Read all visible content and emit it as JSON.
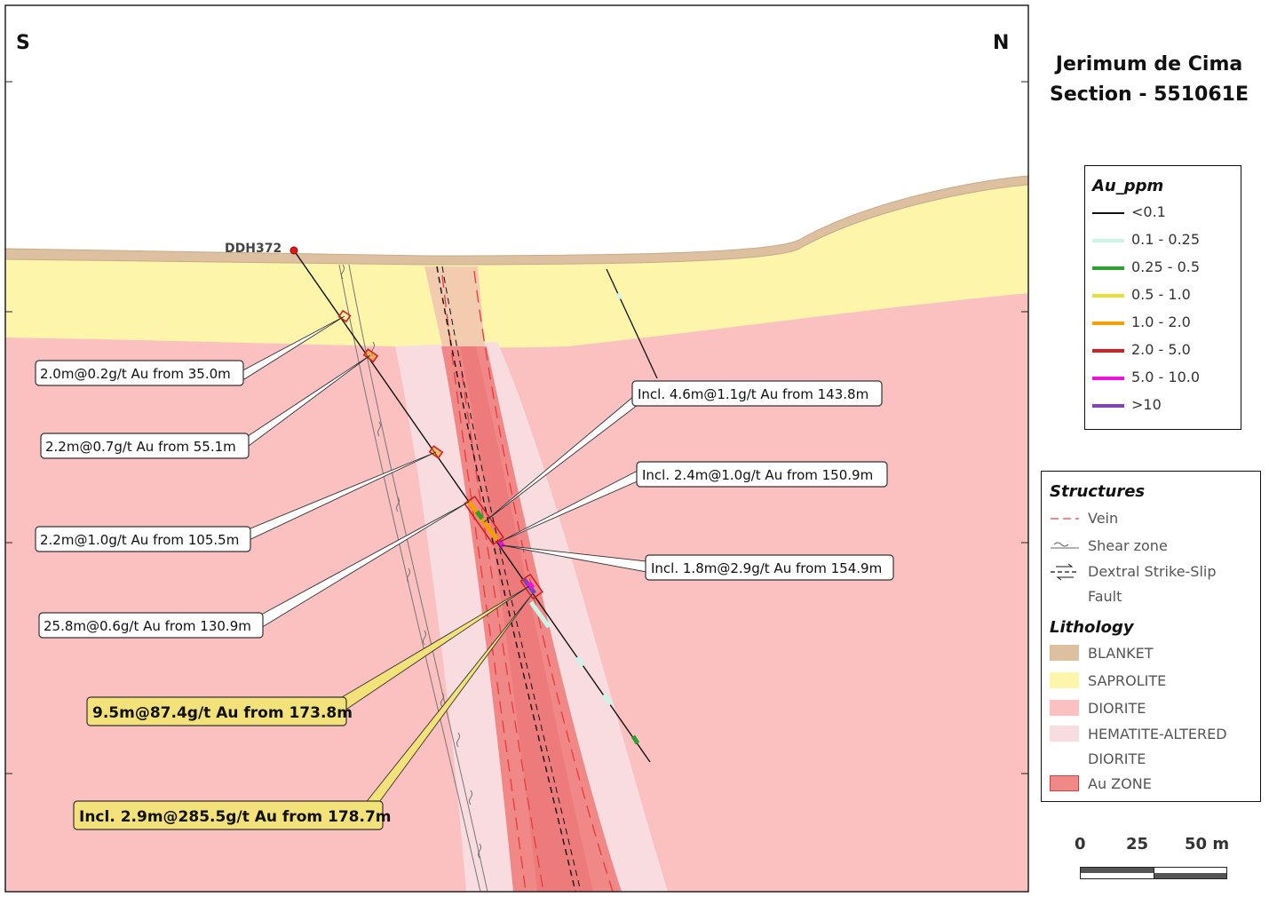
{
  "title": {
    "line1": "Jerimum de Cima",
    "line2": "Section - 551061E"
  },
  "compass": {
    "left": "S",
    "right": "N"
  },
  "drillhole": {
    "name": "DDH372"
  },
  "callouts": [
    {
      "id": "c1",
      "text": "2.0m@0.2g/t Au from 35.0m",
      "highlight": false
    },
    {
      "id": "c2",
      "text": "2.2m@0.7g/t Au from 55.1m",
      "highlight": false
    },
    {
      "id": "c3",
      "text": "2.2m@1.0g/t Au from 105.5m",
      "highlight": false
    },
    {
      "id": "c4",
      "text": "25.8m@0.6g/t Au from 130.9m",
      "highlight": false
    },
    {
      "id": "c5",
      "text": "9.5m@87.4g/t Au from 173.8m",
      "highlight": true
    },
    {
      "id": "c6",
      "text": "Incl. 2.9m@285.5g/t Au from 178.7m",
      "highlight": true
    },
    {
      "id": "c7",
      "text": "Incl. 4.6m@1.1g/t Au from 143.8m",
      "highlight": false
    },
    {
      "id": "c8",
      "text": "Incl. 2.4m@1.0g/t Au from 150.9m",
      "highlight": false
    },
    {
      "id": "c9",
      "text": "Incl. 1.8m@2.9g/t Au from 154.9m",
      "highlight": false
    }
  ],
  "legend_au": {
    "title": "Au_ppm",
    "items": [
      {
        "label": "<0.1",
        "color": "#111111"
      },
      {
        "label": "0.1 - 0.25",
        "color": "#c8f5e8"
      },
      {
        "label": "0.25 - 0.5",
        "color": "#2ca02c"
      },
      {
        "label": "0.5 - 1.0",
        "color": "#e8e030"
      },
      {
        "label": "1.0 - 2.0",
        "color": "#f5a000"
      },
      {
        "label": "2.0 - 5.0",
        "color": "#d62020"
      },
      {
        "label": "5.0 - 10.0",
        "color": "#f010e0"
      },
      {
        "label": ">10",
        "color": "#8040c0"
      }
    ]
  },
  "legend_structures": {
    "title": "Structures",
    "items": [
      {
        "label": "Vein",
        "icon": "vein-icon"
      },
      {
        "label": "Shear zone",
        "icon": "shear-zone-icon"
      },
      {
        "label": "Dextral Strike-Slip",
        "label2": "Fault",
        "icon": "fault-icon"
      }
    ]
  },
  "legend_lithology": {
    "title": "Lithology",
    "items": [
      {
        "label": "BLANKET",
        "color": "#dcc0a0"
      },
      {
        "label": "SAPROLITE",
        "color": "#fdf5aa"
      },
      {
        "label": "DIORITE",
        "color": "#fbc0c0"
      },
      {
        "label": "HEMATITE-ALTERED",
        "label2": "DIORITE",
        "color": "#f8dce0"
      },
      {
        "label": "Au ZONE",
        "color": "#f08888"
      }
    ]
  },
  "scale": {
    "ticks": [
      "0",
      "25",
      "50 m"
    ]
  },
  "colors": {
    "blanket": "#dcc0a0",
    "saprolite": "#fdf5aa",
    "diorite": "#fbc0c0",
    "hematite": "#f8dce0",
    "au_zone": "#f08888",
    "au_zone_core": "#f07070",
    "callout_highlight": "#f3e27a"
  }
}
